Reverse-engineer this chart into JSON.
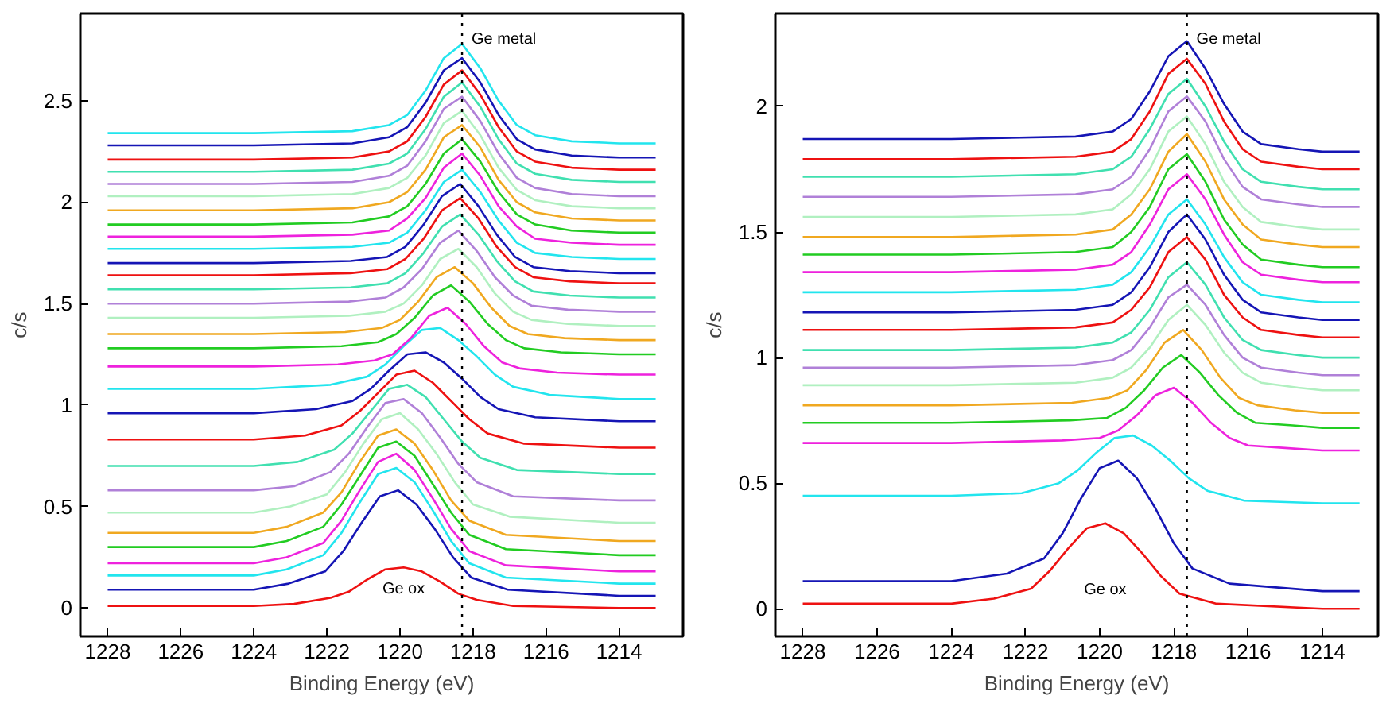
{
  "chart_data": [
    {
      "type": "line",
      "xlabel": "Binding Energy (eV)",
      "ylabel": "c/s",
      "xlim": [
        1228.75,
        1212.25
      ],
      "ylim": [
        -0.14,
        2.93
      ],
      "xticks": [
        1228,
        1226,
        1224,
        1222,
        1220,
        1218,
        1216,
        1214
      ],
      "yticks": [
        0,
        0.5,
        1,
        1.5,
        2,
        2.5
      ],
      "grid": false,
      "ref_lines": [
        {
          "axis": "x",
          "value": 1218.3,
          "label": "Ge metal",
          "color": "#000000",
          "line_style": "dotted"
        }
      ],
      "annotations": [
        "Ge ox"
      ],
      "series": [
        {
          "color": "#ee1111",
          "x": [
            1228,
            1226,
            1224,
            1222.9,
            1221.9,
            1221.4,
            1220.9,
            1220.4,
            1219.9,
            1219.4,
            1218.9,
            1218.4,
            1217.9,
            1216.9,
            1214,
            1213
          ],
          "values": [
            0.01,
            0.01,
            0.01,
            0.02,
            0.05,
            0.08,
            0.14,
            0.19,
            0.2,
            0.18,
            0.13,
            0.07,
            0.04,
            0.01,
            0.0,
            0.0
          ]
        },
        {
          "color": "#1515b5",
          "x": [
            1228,
            1226,
            1224,
            1223.05,
            1222.05,
            1221.55,
            1221.05,
            1220.55,
            1220.05,
            1219.55,
            1219.05,
            1218.55,
            1218.05,
            1217.05,
            1214,
            1213
          ],
          "values": [
            0.09,
            0.09,
            0.09,
            0.12,
            0.18,
            0.28,
            0.42,
            0.55,
            0.58,
            0.51,
            0.39,
            0.25,
            0.15,
            0.09,
            0.06,
            0.06
          ]
        },
        {
          "color": "#22e5ee",
          "x": [
            1228,
            1226,
            1224,
            1223.1,
            1222.1,
            1221.6,
            1221.1,
            1220.6,
            1220.1,
            1219.6,
            1219.1,
            1218.6,
            1218.1,
            1217.1,
            1214,
            1213
          ],
          "values": [
            0.16,
            0.16,
            0.16,
            0.19,
            0.26,
            0.37,
            0.52,
            0.66,
            0.69,
            0.62,
            0.48,
            0.33,
            0.22,
            0.15,
            0.12,
            0.12
          ]
        },
        {
          "color": "#ee22dd",
          "x": [
            1228,
            1226,
            1224,
            1223.1,
            1222.1,
            1221.6,
            1221.1,
            1220.6,
            1220.1,
            1219.6,
            1219.1,
            1218.6,
            1218.1,
            1217.1,
            1214,
            1213
          ],
          "values": [
            0.22,
            0.22,
            0.22,
            0.25,
            0.32,
            0.43,
            0.58,
            0.72,
            0.76,
            0.68,
            0.54,
            0.39,
            0.28,
            0.21,
            0.18,
            0.18
          ]
        },
        {
          "color": "#22cc22",
          "x": [
            1228,
            1226,
            1224,
            1223.1,
            1222.1,
            1221.6,
            1221.1,
            1220.6,
            1220.1,
            1219.6,
            1219.1,
            1218.6,
            1218.1,
            1217.1,
            1214,
            1213
          ],
          "values": [
            0.3,
            0.3,
            0.3,
            0.33,
            0.4,
            0.51,
            0.65,
            0.79,
            0.82,
            0.75,
            0.61,
            0.47,
            0.36,
            0.29,
            0.26,
            0.26
          ]
        },
        {
          "color": "#f0a820",
          "x": [
            1228,
            1226,
            1224,
            1223.1,
            1222.1,
            1221.6,
            1221.1,
            1220.6,
            1220.1,
            1219.6,
            1219.1,
            1218.6,
            1218.1,
            1217.1,
            1214,
            1213
          ],
          "values": [
            0.37,
            0.37,
            0.37,
            0.4,
            0.47,
            0.57,
            0.72,
            0.85,
            0.88,
            0.81,
            0.68,
            0.53,
            0.43,
            0.36,
            0.33,
            0.33
          ]
        },
        {
          "color": "#b0f0c0",
          "x": [
            1228,
            1226,
            1224,
            1223,
            1222,
            1221.5,
            1221,
            1220.5,
            1220,
            1219.5,
            1219,
            1218.5,
            1218,
            1217,
            1214,
            1213
          ],
          "values": [
            0.47,
            0.47,
            0.47,
            0.5,
            0.56,
            0.67,
            0.81,
            0.93,
            0.96,
            0.88,
            0.76,
            0.62,
            0.51,
            0.45,
            0.42,
            0.42
          ]
        },
        {
          "color": "#b080d8",
          "x": [
            1228,
            1226,
            1224,
            1222.9,
            1221.9,
            1221.4,
            1220.9,
            1220.4,
            1219.9,
            1219.4,
            1218.9,
            1218.4,
            1217.9,
            1216.9,
            1214,
            1213
          ],
          "values": [
            0.58,
            0.58,
            0.58,
            0.6,
            0.67,
            0.76,
            0.89,
            1.01,
            1.03,
            0.96,
            0.84,
            0.71,
            0.62,
            0.55,
            0.53,
            0.53
          ]
        },
        {
          "color": "#40e0b0",
          "x": [
            1228,
            1226,
            1224,
            1222.8,
            1221.8,
            1221.3,
            1220.8,
            1220.3,
            1219.8,
            1219.3,
            1218.8,
            1218.3,
            1217.8,
            1216.8,
            1214,
            1213
          ],
          "values": [
            0.7,
            0.7,
            0.7,
            0.72,
            0.78,
            0.86,
            0.97,
            1.08,
            1.1,
            1.04,
            0.93,
            0.82,
            0.74,
            0.68,
            0.66,
            0.66
          ]
        },
        {
          "color": "#ee1111",
          "x": [
            1228,
            1226,
            1224,
            1222.6,
            1221.6,
            1221.1,
            1220.6,
            1220.1,
            1219.6,
            1219.1,
            1218.6,
            1218.1,
            1217.6,
            1216.6,
            1214,
            1213
          ],
          "values": [
            0.83,
            0.83,
            0.83,
            0.85,
            0.9,
            0.97,
            1.06,
            1.15,
            1.17,
            1.11,
            1.02,
            0.93,
            0.86,
            0.81,
            0.79,
            0.79
          ]
        },
        {
          "color": "#1515b5",
          "x": [
            1228,
            1226,
            1224,
            1222.3,
            1221.3,
            1220.8,
            1220.3,
            1219.8,
            1219.3,
            1218.8,
            1218.3,
            1217.8,
            1217.3,
            1216.3,
            1214,
            1213
          ],
          "values": [
            0.96,
            0.96,
            0.96,
            0.98,
            1.02,
            1.08,
            1.17,
            1.25,
            1.26,
            1.21,
            1.13,
            1.04,
            0.98,
            0.94,
            0.92,
            0.92
          ]
        },
        {
          "color": "#22e5ee",
          "x": [
            1228,
            1226,
            1224,
            1221.9,
            1220.9,
            1220.4,
            1219.9,
            1219.4,
            1218.9,
            1218.4,
            1217.9,
            1217.4,
            1216.9,
            1215.9,
            1214,
            1213
          ],
          "values": [
            1.08,
            1.08,
            1.08,
            1.1,
            1.14,
            1.2,
            1.29,
            1.37,
            1.38,
            1.32,
            1.24,
            1.15,
            1.09,
            1.05,
            1.03,
            1.03
          ]
        },
        {
          "color": "#ee22dd",
          "x": [
            1228,
            1226,
            1224,
            1221.7,
            1220.7,
            1220.2,
            1219.7,
            1219.2,
            1218.7,
            1218.2,
            1217.7,
            1217.2,
            1216.7,
            1215.7,
            1214,
            1213
          ],
          "values": [
            1.19,
            1.19,
            1.19,
            1.2,
            1.22,
            1.25,
            1.33,
            1.44,
            1.48,
            1.4,
            1.29,
            1.21,
            1.18,
            1.16,
            1.15,
            1.15
          ]
        },
        {
          "color": "#22cc22",
          "x": [
            1228,
            1226,
            1224,
            1221.6,
            1220.6,
            1220.1,
            1219.6,
            1219.1,
            1218.6,
            1218.1,
            1217.6,
            1217.1,
            1216.6,
            1215.6,
            1214,
            1213
          ],
          "values": [
            1.28,
            1.28,
            1.28,
            1.29,
            1.31,
            1.35,
            1.43,
            1.54,
            1.59,
            1.51,
            1.4,
            1.32,
            1.28,
            1.26,
            1.25,
            1.25
          ]
        },
        {
          "color": "#f0a820",
          "x": [
            1228,
            1226,
            1224,
            1221.5,
            1220.5,
            1220,
            1219.5,
            1219,
            1218.5,
            1218,
            1217.5,
            1217,
            1216.5,
            1215.5,
            1214,
            1213
          ],
          "values": [
            1.35,
            1.35,
            1.35,
            1.36,
            1.38,
            1.42,
            1.51,
            1.63,
            1.68,
            1.6,
            1.48,
            1.39,
            1.35,
            1.33,
            1.32,
            1.32
          ]
        },
        {
          "color": "#b0f0c0",
          "x": [
            1228,
            1226,
            1224,
            1221.4,
            1220.4,
            1219.9,
            1219.4,
            1218.9,
            1218.4,
            1217.9,
            1217.4,
            1216.9,
            1216.4,
            1215.4,
            1214,
            1213
          ],
          "values": [
            1.43,
            1.43,
            1.43,
            1.44,
            1.46,
            1.5,
            1.59,
            1.72,
            1.77,
            1.68,
            1.55,
            1.46,
            1.42,
            1.4,
            1.39,
            1.39
          ]
        },
        {
          "color": "#b080d8",
          "x": [
            1228,
            1226,
            1224,
            1221.4,
            1220.4,
            1219.9,
            1219.4,
            1218.9,
            1218.4,
            1217.9,
            1217.4,
            1216.9,
            1216.4,
            1215.4,
            1214,
            1213
          ],
          "values": [
            1.5,
            1.5,
            1.5,
            1.51,
            1.53,
            1.58,
            1.67,
            1.8,
            1.86,
            1.76,
            1.63,
            1.54,
            1.49,
            1.47,
            1.46,
            1.46
          ]
        },
        {
          "color": "#40e0b0",
          "x": [
            1228,
            1226,
            1224,
            1221.35,
            1220.35,
            1219.85,
            1219.35,
            1218.85,
            1218.35,
            1217.85,
            1217.35,
            1216.85,
            1216.35,
            1215.35,
            1214,
            1213
          ],
          "values": [
            1.57,
            1.57,
            1.57,
            1.58,
            1.6,
            1.65,
            1.75,
            1.88,
            1.94,
            1.84,
            1.71,
            1.61,
            1.56,
            1.54,
            1.53,
            1.53
          ]
        },
        {
          "color": "#ee1111",
          "x": [
            1228,
            1226,
            1224,
            1221.35,
            1220.35,
            1219.85,
            1219.35,
            1218.85,
            1218.35,
            1217.85,
            1217.35,
            1216.85,
            1216.35,
            1215.35,
            1214,
            1213
          ],
          "values": [
            1.64,
            1.64,
            1.64,
            1.65,
            1.67,
            1.72,
            1.82,
            1.96,
            2.02,
            1.92,
            1.78,
            1.68,
            1.63,
            1.61,
            1.6,
            1.6
          ]
        },
        {
          "color": "#1515b5",
          "x": [
            1228,
            1226,
            1224,
            1221.35,
            1220.35,
            1219.85,
            1219.35,
            1218.85,
            1218.35,
            1217.85,
            1217.35,
            1216.85,
            1216.35,
            1215.35,
            1214,
            1213
          ],
          "values": [
            1.7,
            1.7,
            1.7,
            1.71,
            1.73,
            1.78,
            1.89,
            2.03,
            2.09,
            1.98,
            1.84,
            1.73,
            1.68,
            1.66,
            1.65,
            1.65
          ]
        },
        {
          "color": "#22e5ee",
          "x": [
            1228,
            1226,
            1224,
            1221.3,
            1220.3,
            1219.8,
            1219.3,
            1218.8,
            1218.3,
            1217.8,
            1217.3,
            1216.8,
            1216.3,
            1215.3,
            1214,
            1213
          ],
          "values": [
            1.77,
            1.77,
            1.77,
            1.78,
            1.8,
            1.85,
            1.96,
            2.1,
            2.16,
            2.05,
            1.91,
            1.8,
            1.75,
            1.73,
            1.72,
            1.72
          ]
        },
        {
          "color": "#ee22dd",
          "x": [
            1228,
            1226,
            1224,
            1221.3,
            1220.3,
            1219.8,
            1219.3,
            1218.8,
            1218.3,
            1217.8,
            1217.3,
            1216.8,
            1216.3,
            1215.3,
            1214,
            1213
          ],
          "values": [
            1.83,
            1.83,
            1.83,
            1.84,
            1.86,
            1.92,
            2.02,
            2.17,
            2.24,
            2.13,
            1.98,
            1.88,
            1.82,
            1.8,
            1.79,
            1.79
          ]
        },
        {
          "color": "#22cc22",
          "x": [
            1228,
            1226,
            1224,
            1221.3,
            1220.3,
            1219.8,
            1219.3,
            1218.8,
            1218.3,
            1217.8,
            1217.3,
            1216.8,
            1216.3,
            1215.3,
            1214,
            1213
          ],
          "values": [
            1.89,
            1.89,
            1.89,
            1.9,
            1.93,
            1.98,
            2.09,
            2.24,
            2.31,
            2.2,
            2.05,
            1.94,
            1.89,
            1.86,
            1.85,
            1.85
          ]
        },
        {
          "color": "#f0a820",
          "x": [
            1228,
            1226,
            1224,
            1221.3,
            1220.3,
            1219.8,
            1219.3,
            1218.8,
            1218.3,
            1217.8,
            1217.3,
            1216.8,
            1216.3,
            1215.3,
            1214,
            1213
          ],
          "values": [
            1.96,
            1.96,
            1.96,
            1.97,
            2.0,
            2.05,
            2.16,
            2.32,
            2.38,
            2.27,
            2.11,
            2.0,
            1.95,
            1.92,
            1.91,
            1.91
          ]
        },
        {
          "color": "#b0f0c0",
          "x": [
            1228,
            1226,
            1224,
            1221.3,
            1220.3,
            1219.8,
            1219.3,
            1218.8,
            1218.3,
            1217.8,
            1217.3,
            1216.8,
            1216.3,
            1215.3,
            1214,
            1213
          ],
          "values": [
            2.03,
            2.03,
            2.03,
            2.04,
            2.07,
            2.12,
            2.23,
            2.39,
            2.45,
            2.33,
            2.17,
            2.06,
            2.01,
            1.98,
            1.97,
            1.97
          ]
        },
        {
          "color": "#b080d8",
          "x": [
            1228,
            1226,
            1224,
            1221.3,
            1220.3,
            1219.8,
            1219.3,
            1218.8,
            1218.3,
            1217.8,
            1217.3,
            1216.8,
            1216.3,
            1215.3,
            1214,
            1213
          ],
          "values": [
            2.09,
            2.09,
            2.09,
            2.1,
            2.13,
            2.18,
            2.3,
            2.46,
            2.52,
            2.4,
            2.24,
            2.12,
            2.07,
            2.04,
            2.03,
            2.03
          ]
        },
        {
          "color": "#40e0b0",
          "x": [
            1228,
            1226,
            1224,
            1221.3,
            1220.3,
            1219.8,
            1219.3,
            1218.8,
            1218.3,
            1217.8,
            1217.3,
            1216.8,
            1216.3,
            1215.3,
            1214,
            1213
          ],
          "values": [
            2.15,
            2.15,
            2.15,
            2.16,
            2.19,
            2.24,
            2.36,
            2.52,
            2.59,
            2.47,
            2.31,
            2.19,
            2.14,
            2.11,
            2.1,
            2.1
          ]
        },
        {
          "color": "#ee1111",
          "x": [
            1228,
            1226,
            1224,
            1221.3,
            1220.3,
            1219.8,
            1219.3,
            1218.8,
            1218.3,
            1217.8,
            1217.3,
            1216.8,
            1216.3,
            1215.3,
            1214,
            1213
          ],
          "values": [
            2.21,
            2.21,
            2.21,
            2.22,
            2.25,
            2.3,
            2.42,
            2.58,
            2.65,
            2.53,
            2.37,
            2.25,
            2.2,
            2.17,
            2.16,
            2.16
          ]
        },
        {
          "color": "#1515b5",
          "x": [
            1228,
            1226,
            1224,
            1221.3,
            1220.3,
            1219.8,
            1219.3,
            1218.8,
            1218.3,
            1217.8,
            1217.3,
            1216.8,
            1216.3,
            1215.3,
            1214,
            1213
          ],
          "values": [
            2.28,
            2.28,
            2.28,
            2.29,
            2.32,
            2.37,
            2.49,
            2.65,
            2.71,
            2.59,
            2.43,
            2.31,
            2.26,
            2.23,
            2.22,
            2.22
          ]
        },
        {
          "color": "#22e5ee",
          "x": [
            1228,
            1226,
            1224,
            1221.3,
            1220.3,
            1219.8,
            1219.3,
            1218.8,
            1218.3,
            1217.8,
            1217.3,
            1216.8,
            1216.3,
            1215.3,
            1214,
            1213
          ],
          "values": [
            2.34,
            2.34,
            2.34,
            2.35,
            2.38,
            2.43,
            2.55,
            2.71,
            2.78,
            2.66,
            2.5,
            2.38,
            2.33,
            2.3,
            2.29,
            2.29
          ]
        }
      ]
    },
    {
      "type": "line",
      "xlabel": "Binding Energy (eV)",
      "ylabel": "c/s",
      "xlim": [
        1228.74,
        1212.5
      ],
      "ylim": [
        -0.11,
        2.37
      ],
      "xticks": [
        1228,
        1226,
        1224,
        1222,
        1220,
        1218,
        1216,
        1214
      ],
      "yticks": [
        0,
        0.5,
        1,
        1.5,
        2
      ],
      "grid": false,
      "ref_lines": [
        {
          "axis": "x",
          "value": 1217.65,
          "label": "Ge metal",
          "color": "#000000",
          "line_style": "dotted"
        }
      ],
      "annotations": [
        "Ge ox"
      ],
      "series": [
        {
          "color": "#ee1111",
          "x": [
            1228,
            1226,
            1224,
            1222.85,
            1221.85,
            1221.35,
            1220.85,
            1220.35,
            1219.85,
            1219.35,
            1218.85,
            1218.35,
            1217.85,
            1216.85,
            1214,
            1213
          ],
          "values": [
            0.02,
            0.02,
            0.02,
            0.04,
            0.08,
            0.15,
            0.24,
            0.32,
            0.34,
            0.3,
            0.22,
            0.13,
            0.06,
            0.02,
            0.0,
            0.0
          ]
        },
        {
          "color": "#1515b5",
          "x": [
            1228,
            1226,
            1224,
            1222.5,
            1221.5,
            1221,
            1220.5,
            1220,
            1219.5,
            1219,
            1218.5,
            1218,
            1217.5,
            1216.5,
            1214,
            1213
          ],
          "values": [
            0.11,
            0.11,
            0.11,
            0.14,
            0.2,
            0.3,
            0.44,
            0.56,
            0.59,
            0.52,
            0.4,
            0.26,
            0.16,
            0.1,
            0.07,
            0.07
          ]
        },
        {
          "color": "#22e5ee",
          "x": [
            1228,
            1226,
            1224,
            1222.1,
            1221.1,
            1220.6,
            1220.1,
            1219.6,
            1219.1,
            1218.6,
            1218.1,
            1217.6,
            1217.1,
            1216.1,
            1214,
            1213
          ],
          "values": [
            0.45,
            0.45,
            0.45,
            0.46,
            0.5,
            0.55,
            0.62,
            0.68,
            0.69,
            0.65,
            0.59,
            0.52,
            0.47,
            0.43,
            0.42,
            0.42
          ]
        },
        {
          "color": "#ee22dd",
          "x": [
            1228,
            1226,
            1224,
            1221,
            1220,
            1219.5,
            1219,
            1218.5,
            1218,
            1217.5,
            1217,
            1216.5,
            1216,
            1215,
            1214,
            1213
          ],
          "values": [
            0.66,
            0.66,
            0.66,
            0.67,
            0.68,
            0.71,
            0.77,
            0.85,
            0.88,
            0.82,
            0.74,
            0.68,
            0.65,
            0.64,
            0.63,
            0.63
          ]
        },
        {
          "color": "#22cc22",
          "x": [
            1228,
            1226,
            1224,
            1220.8,
            1219.8,
            1219.3,
            1218.8,
            1218.3,
            1217.8,
            1217.3,
            1216.8,
            1216.3,
            1215.8,
            1214.8,
            1214,
            1213
          ],
          "values": [
            0.74,
            0.74,
            0.74,
            0.75,
            0.76,
            0.8,
            0.87,
            0.96,
            1.01,
            0.94,
            0.85,
            0.78,
            0.74,
            0.73,
            0.72,
            0.72
          ]
        },
        {
          "color": "#f0a820",
          "x": [
            1228,
            1226,
            1224,
            1220.75,
            1219.75,
            1219.25,
            1218.75,
            1218.25,
            1217.75,
            1217.25,
            1216.75,
            1216.25,
            1215.75,
            1214.75,
            1214,
            1213
          ],
          "values": [
            0.81,
            0.81,
            0.81,
            0.82,
            0.84,
            0.87,
            0.95,
            1.06,
            1.11,
            1.03,
            0.92,
            0.84,
            0.81,
            0.79,
            0.78,
            0.78
          ]
        },
        {
          "color": "#b0f0c0",
          "x": [
            1228,
            1226,
            1224,
            1220.65,
            1219.65,
            1219.15,
            1218.65,
            1218.15,
            1217.65,
            1217.15,
            1216.65,
            1216.15,
            1215.65,
            1214.65,
            1214,
            1213
          ],
          "values": [
            0.89,
            0.89,
            0.89,
            0.9,
            0.92,
            0.96,
            1.04,
            1.15,
            1.21,
            1.13,
            1.02,
            0.94,
            0.9,
            0.88,
            0.87,
            0.87
          ]
        },
        {
          "color": "#b080d8",
          "x": [
            1228,
            1226,
            1224,
            1220.65,
            1219.65,
            1219.15,
            1218.65,
            1218.15,
            1217.65,
            1217.15,
            1216.65,
            1216.15,
            1215.65,
            1214.65,
            1214,
            1213
          ],
          "values": [
            0.96,
            0.96,
            0.96,
            0.97,
            0.99,
            1.03,
            1.12,
            1.24,
            1.29,
            1.21,
            1.09,
            1.0,
            0.96,
            0.94,
            0.93,
            0.93
          ]
        },
        {
          "color": "#40e0b0",
          "x": [
            1228,
            1226,
            1224,
            1220.65,
            1219.65,
            1219.15,
            1218.65,
            1218.15,
            1217.65,
            1217.15,
            1216.65,
            1216.15,
            1215.65,
            1214.65,
            1214,
            1213
          ],
          "values": [
            1.03,
            1.03,
            1.03,
            1.04,
            1.06,
            1.1,
            1.19,
            1.32,
            1.38,
            1.29,
            1.16,
            1.07,
            1.03,
            1.01,
            1.0,
            1.0
          ]
        },
        {
          "color": "#ee1111",
          "x": [
            1228,
            1226,
            1224,
            1220.65,
            1219.65,
            1219.15,
            1218.65,
            1218.15,
            1217.65,
            1217.15,
            1216.65,
            1216.15,
            1215.65,
            1214.65,
            1214,
            1213
          ],
          "values": [
            1.11,
            1.11,
            1.11,
            1.12,
            1.14,
            1.19,
            1.28,
            1.42,
            1.48,
            1.39,
            1.25,
            1.16,
            1.11,
            1.09,
            1.08,
            1.08
          ]
        },
        {
          "color": "#1515b5",
          "x": [
            1228,
            1226,
            1224,
            1220.65,
            1219.65,
            1219.15,
            1218.65,
            1218.15,
            1217.65,
            1217.15,
            1216.65,
            1216.15,
            1215.65,
            1214.65,
            1214,
            1213
          ],
          "values": [
            1.18,
            1.18,
            1.18,
            1.19,
            1.21,
            1.26,
            1.36,
            1.5,
            1.57,
            1.47,
            1.33,
            1.23,
            1.18,
            1.16,
            1.15,
            1.15
          ]
        },
        {
          "color": "#22e5ee",
          "x": [
            1228,
            1226,
            1224,
            1220.65,
            1219.65,
            1219.15,
            1218.65,
            1218.15,
            1217.65,
            1217.15,
            1216.65,
            1216.15,
            1215.65,
            1214.65,
            1214,
            1213
          ],
          "values": [
            1.26,
            1.26,
            1.26,
            1.27,
            1.29,
            1.34,
            1.44,
            1.57,
            1.63,
            1.53,
            1.4,
            1.3,
            1.25,
            1.23,
            1.22,
            1.22
          ]
        },
        {
          "color": "#ee22dd",
          "x": [
            1228,
            1226,
            1224,
            1220.65,
            1219.65,
            1219.15,
            1218.65,
            1218.15,
            1217.65,
            1217.15,
            1216.65,
            1216.15,
            1215.65,
            1214.65,
            1214,
            1213
          ],
          "values": [
            1.34,
            1.34,
            1.34,
            1.35,
            1.37,
            1.42,
            1.53,
            1.67,
            1.73,
            1.63,
            1.49,
            1.38,
            1.33,
            1.31,
            1.3,
            1.3
          ]
        },
        {
          "color": "#22cc22",
          "x": [
            1228,
            1226,
            1224,
            1220.65,
            1219.65,
            1219.15,
            1218.65,
            1218.15,
            1217.65,
            1217.15,
            1216.65,
            1216.15,
            1215.65,
            1214.65,
            1214,
            1213
          ],
          "values": [
            1.41,
            1.41,
            1.41,
            1.42,
            1.44,
            1.5,
            1.6,
            1.75,
            1.81,
            1.7,
            1.55,
            1.45,
            1.39,
            1.37,
            1.36,
            1.36
          ]
        },
        {
          "color": "#f0a820",
          "x": [
            1228,
            1226,
            1224,
            1220.65,
            1219.65,
            1219.15,
            1218.65,
            1218.15,
            1217.65,
            1217.15,
            1216.65,
            1216.15,
            1215.65,
            1214.65,
            1214,
            1213
          ],
          "values": [
            1.48,
            1.48,
            1.48,
            1.49,
            1.51,
            1.57,
            1.67,
            1.82,
            1.89,
            1.78,
            1.63,
            1.53,
            1.47,
            1.45,
            1.44,
            1.44
          ]
        },
        {
          "color": "#b0f0c0",
          "x": [
            1228,
            1226,
            1224,
            1220.65,
            1219.65,
            1219.15,
            1218.65,
            1218.15,
            1217.65,
            1217.15,
            1216.65,
            1216.15,
            1215.65,
            1214.65,
            1214,
            1213
          ],
          "values": [
            1.56,
            1.56,
            1.56,
            1.57,
            1.59,
            1.65,
            1.75,
            1.9,
            1.96,
            1.85,
            1.7,
            1.6,
            1.54,
            1.52,
            1.51,
            1.51
          ]
        },
        {
          "color": "#b080d8",
          "x": [
            1228,
            1226,
            1224,
            1220.65,
            1219.65,
            1219.15,
            1218.65,
            1218.15,
            1217.65,
            1217.15,
            1216.65,
            1216.15,
            1215.65,
            1214.65,
            1214,
            1213
          ],
          "values": [
            1.64,
            1.64,
            1.64,
            1.65,
            1.67,
            1.72,
            1.83,
            1.98,
            2.04,
            1.94,
            1.79,
            1.68,
            1.63,
            1.61,
            1.6,
            1.6
          ]
        },
        {
          "color": "#40e0b0",
          "x": [
            1228,
            1226,
            1224,
            1220.65,
            1219.65,
            1219.15,
            1218.65,
            1218.15,
            1217.65,
            1217.15,
            1216.65,
            1216.15,
            1215.65,
            1214.65,
            1214,
            1213
          ],
          "values": [
            1.72,
            1.72,
            1.72,
            1.73,
            1.75,
            1.8,
            1.91,
            2.05,
            2.11,
            2.0,
            1.86,
            1.75,
            1.7,
            1.68,
            1.67,
            1.67
          ]
        },
        {
          "color": "#ee1111",
          "x": [
            1228,
            1226,
            1224,
            1220.65,
            1219.65,
            1219.15,
            1218.65,
            1218.15,
            1217.65,
            1217.15,
            1216.65,
            1216.15,
            1215.65,
            1214.65,
            1214,
            1213
          ],
          "values": [
            1.79,
            1.79,
            1.79,
            1.8,
            1.82,
            1.87,
            1.98,
            2.13,
            2.19,
            2.09,
            1.94,
            1.83,
            1.78,
            1.76,
            1.75,
            1.75
          ]
        },
        {
          "color": "#1515b5",
          "x": [
            1228,
            1226,
            1224,
            1220.65,
            1219.65,
            1219.15,
            1218.65,
            1218.15,
            1217.65,
            1217.15,
            1216.65,
            1216.15,
            1215.65,
            1214.65,
            1214,
            1213
          ],
          "values": [
            1.87,
            1.87,
            1.87,
            1.88,
            1.9,
            1.95,
            2.06,
            2.2,
            2.26,
            2.15,
            2.01,
            1.9,
            1.85,
            1.83,
            1.82,
            1.82
          ]
        }
      ]
    }
  ]
}
